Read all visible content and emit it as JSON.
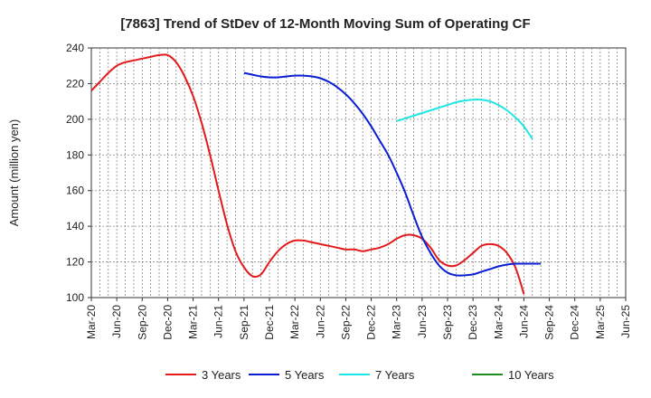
{
  "chart_data": {
    "type": "line",
    "title": "[7863]  Trend of StDev of 12-Month Moving Sum of Operating CF",
    "xlabel": "",
    "ylabel": "Amount (million yen)",
    "ylim": [
      100,
      240
    ],
    "yticks": [
      100,
      120,
      140,
      160,
      180,
      200,
      220,
      240
    ],
    "x_tick_labels": [
      "Mar-20",
      "Jun-20",
      "Sep-20",
      "Dec-20",
      "Mar-21",
      "Jun-21",
      "Sep-21",
      "Dec-21",
      "Mar-22",
      "Jun-22",
      "Sep-22",
      "Dec-22",
      "Mar-23",
      "Jun-23",
      "Sep-23",
      "Dec-23",
      "Mar-24",
      "Jun-24",
      "Sep-24",
      "Dec-24",
      "Mar-25",
      "Jun-25"
    ],
    "grid": true,
    "legend_position": "bottom",
    "series": [
      {
        "name": "3 Years",
        "color": "#e31a1c",
        "start_index": 0,
        "values": [
          216,
          221,
          226,
          230,
          232,
          233,
          234,
          235,
          236,
          236,
          232,
          224,
          213,
          198,
          180,
          160,
          141,
          126,
          117,
          112,
          113,
          120,
          126,
          130,
          132,
          132,
          131,
          130,
          129,
          128,
          127,
          127,
          126,
          127,
          128,
          130,
          133,
          135,
          135,
          133,
          128,
          121,
          118,
          118,
          121,
          125,
          129,
          130,
          129,
          125,
          117,
          102
        ]
      },
      {
        "name": "5 Years",
        "color": "#0a1fd4",
        "start_index": 18,
        "values": [
          226,
          225,
          224,
          223.5,
          223.5,
          224,
          224.5,
          224.5,
          224,
          223,
          221,
          218,
          214,
          209,
          203,
          196,
          188,
          180,
          170,
          159,
          146,
          134,
          125,
          118,
          114,
          112.5,
          112.5,
          113,
          114.5,
          116,
          117.5,
          118.5,
          119,
          119,
          119,
          119
        ]
      },
      {
        "name": "7 Years",
        "color": "#1ee6e6",
        "start_index": 36,
        "values": [
          199,
          200.5,
          202,
          203.5,
          205,
          206.5,
          208,
          209.5,
          210.5,
          211,
          211,
          210,
          208,
          205,
          201,
          196,
          189
        ]
      },
      {
        "name": "10 Years",
        "color": "#1e8c1e",
        "start_index": 0,
        "values": []
      }
    ]
  }
}
